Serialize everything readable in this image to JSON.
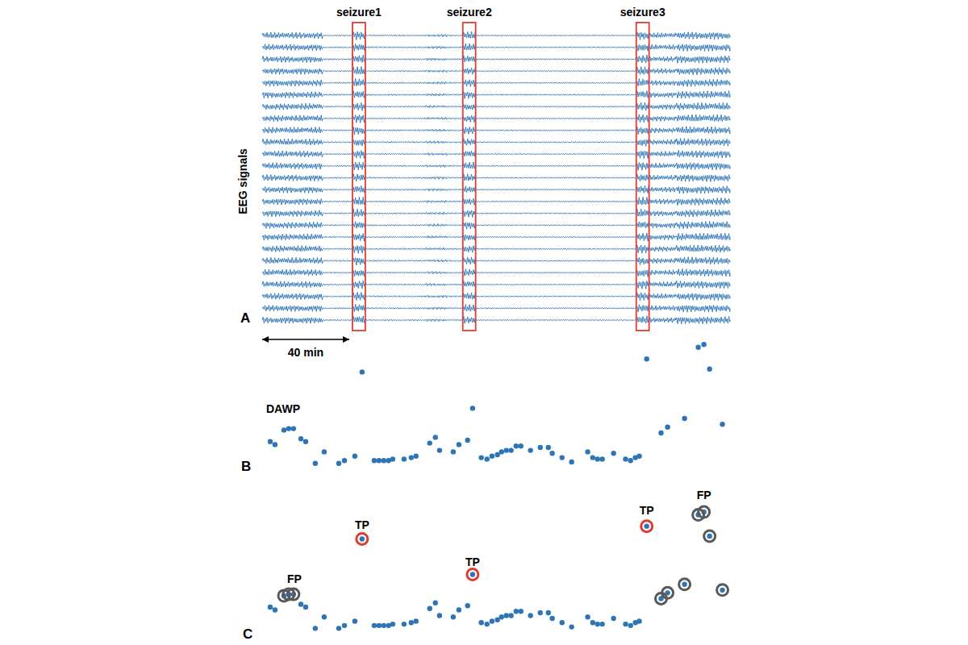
{
  "chart_data": [
    {
      "type": "eeg",
      "panel": "A",
      "ylabel": "EEG signals",
      "xlim": [
        0,
        215
      ],
      "channels": 25,
      "color": "#2e75b6",
      "tick_labels": false,
      "activity": [
        {
          "start": 0,
          "end": 28,
          "amplitude": 0.6
        },
        {
          "start": 28,
          "end": 41.5,
          "amplitude": 0.15
        },
        {
          "start": 41.5,
          "end": 47.4,
          "amplitude": 0.8
        },
        {
          "start": 47.4,
          "end": 75,
          "amplitude": 0.15
        },
        {
          "start": 75,
          "end": 85,
          "amplitude": 0.25
        },
        {
          "start": 85,
          "end": 92.2,
          "amplitude": 0.15
        },
        {
          "start": 92.2,
          "end": 98.1,
          "amplitude": 0.7
        },
        {
          "start": 98.1,
          "end": 171.9,
          "amplitude": 0.12
        },
        {
          "start": 171.9,
          "end": 177.8,
          "amplitude": 0.8
        },
        {
          "start": 177.8,
          "end": 190,
          "amplitude": 0.5
        },
        {
          "start": 190,
          "end": 215,
          "amplitude": 0.7
        }
      ],
      "seizures": [
        {
          "label": "seizure1",
          "start": 41.5,
          "end": 47.4,
          "color": "#e03c31"
        },
        {
          "label": "seizure2",
          "start": 92.2,
          "end": 98.1,
          "color": "#e03c31"
        },
        {
          "label": "seizure3",
          "start": 171.9,
          "end": 177.8,
          "color": "#e03c31"
        }
      ],
      "scale_bar": {
        "value": 40,
        "label": "40 min"
      }
    },
    {
      "type": "scatter",
      "panel": "B",
      "title": "DAWP",
      "xlim": [
        0,
        215
      ],
      "ylim": [
        0,
        100
      ],
      "tick_labels": false,
      "series": [
        {
          "color": "#2e75b6",
          "marker": "circle",
          "x": [
            3.7,
            5.9,
            10.0,
            12.2,
            14.4,
            17.8,
            20.0,
            24.4,
            28.5,
            35.2,
            37.8,
            42.6,
            45.9,
            51.5,
            53.7,
            55.9,
            58.1,
            60.0,
            65.2,
            68.5,
            70.7,
            77.0,
            79.6,
            81.5,
            87.8,
            90.4,
            94.4,
            96.7,
            100.7,
            103.3,
            105.6,
            108.1,
            110.0,
            112.2,
            114.4,
            116.7,
            118.9,
            123.3,
            127.8,
            131.5,
            133.3,
            137.8,
            142.2,
            149.6,
            151.9,
            154.1,
            156.3,
            161.5,
            167.0,
            169.3,
            171.5,
            173.3,
            176.7,
            183.3,
            186.3,
            194.1,
            200.4,
            203.0,
            205.6,
            211.5
          ],
          "values": [
            29,
            27,
            37,
            38,
            38,
            31,
            29,
            14,
            22,
            14,
            16,
            19,
            77,
            16,
            16,
            16,
            16,
            17,
            17,
            18,
            19,
            28,
            32,
            23,
            22,
            27,
            30,
            52,
            18,
            17,
            19,
            20,
            22,
            23,
            23,
            26,
            26,
            23,
            25,
            25,
            21,
            18,
            15,
            22,
            18,
            17,
            17,
            21,
            17,
            16,
            18,
            19,
            86,
            35,
            39,
            45,
            94,
            96,
            79,
            41
          ]
        }
      ]
    },
    {
      "type": "scatter",
      "panel": "C",
      "xlim": [
        0,
        215
      ],
      "ylim": [
        0,
        115
      ],
      "tick_labels": false,
      "series": [
        {
          "color": "#2e75b6",
          "marker": "circle",
          "x": [
            3.7,
            5.9,
            10.0,
            12.2,
            14.4,
            17.8,
            20.0,
            24.4,
            28.5,
            35.2,
            37.8,
            42.6,
            45.9,
            51.5,
            53.7,
            55.9,
            58.1,
            60.0,
            65.2,
            68.5,
            70.7,
            77.0,
            79.6,
            81.5,
            87.8,
            90.4,
            94.4,
            96.7,
            100.7,
            103.3,
            105.6,
            108.1,
            110.0,
            112.2,
            114.4,
            116.7,
            118.9,
            123.3,
            127.8,
            131.5,
            133.3,
            137.8,
            142.2,
            149.6,
            151.9,
            154.1,
            156.3,
            161.5,
            167.0,
            169.3,
            171.5,
            173.3,
            176.7,
            183.3,
            186.3,
            194.1,
            200.4,
            203.0,
            205.6,
            211.5
          ],
          "values": [
            29,
            27,
            37,
            38,
            38,
            31,
            29,
            14,
            22,
            14,
            16,
            19,
            77,
            16,
            16,
            16,
            16,
            17,
            17,
            18,
            19,
            28,
            32,
            23,
            22,
            27,
            30,
            52,
            18,
            17,
            19,
            20,
            22,
            23,
            23,
            26,
            26,
            23,
            25,
            25,
            21,
            18,
            15,
            22,
            18,
            17,
            17,
            21,
            17,
            16,
            18,
            19,
            86,
            35,
            39,
            45,
            94,
            96,
            79,
            41
          ]
        },
        {
          "color": "#e03c31",
          "marker": "ring",
          "x": [
            45.9,
            96.7,
            176.7
          ],
          "values": [
            77,
            52,
            86
          ]
        },
        {
          "color": "#595959",
          "marker": "ring",
          "x": [
            10.0,
            12.2,
            14.4,
            183.3,
            186.3,
            194.1,
            200.4,
            203.0,
            205.6,
            211.5
          ],
          "values": [
            37,
            38,
            38,
            35,
            39,
            45,
            94,
            96,
            79,
            41
          ]
        }
      ],
      "annotations": [
        {
          "text": "TP",
          "x": 45.9,
          "y": 87
        },
        {
          "text": "TP",
          "x": 96.7,
          "y": 61
        },
        {
          "text": "TP",
          "x": 176.7,
          "y": 97
        },
        {
          "text": "FP",
          "x": 14.8,
          "y": 49
        },
        {
          "text": "FP",
          "x": 203.0,
          "y": 108
        }
      ]
    }
  ]
}
